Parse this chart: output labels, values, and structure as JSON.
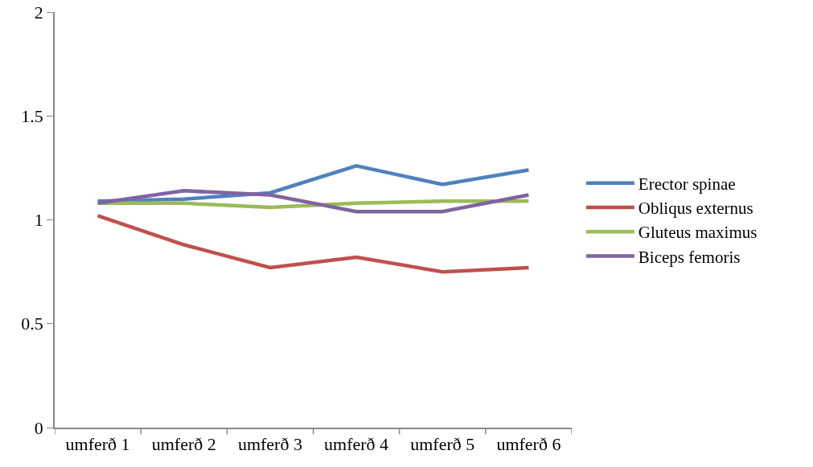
{
  "chart_data": {
    "type": "line",
    "categories": [
      "umferð 1",
      "umferð 2",
      "umferð 3",
      "umferð 4",
      "umferð 5",
      "umferð 6"
    ],
    "series": [
      {
        "name": "Erector spinae",
        "color": "#4f81bd",
        "values": [
          1.09,
          1.1,
          1.13,
          1.26,
          1.17,
          1.24
        ]
      },
      {
        "name": "Obliqus externus",
        "color": "#c0504d",
        "values": [
          1.02,
          0.88,
          0.77,
          0.82,
          0.75,
          0.77
        ]
      },
      {
        "name": "Gluteus maximus",
        "color": "#9bbb59",
        "values": [
          1.08,
          1.08,
          1.06,
          1.08,
          1.09,
          1.09
        ]
      },
      {
        "name": "Biceps femoris",
        "color": "#8064a2",
        "values": [
          1.08,
          1.14,
          1.12,
          1.04,
          1.04,
          1.12
        ]
      }
    ],
    "ylim": [
      0,
      2
    ],
    "yticks": [
      0,
      0.5,
      1,
      1.5,
      2
    ],
    "grid": false,
    "legend": "right",
    "marker": "none",
    "line_style": "solid"
  }
}
